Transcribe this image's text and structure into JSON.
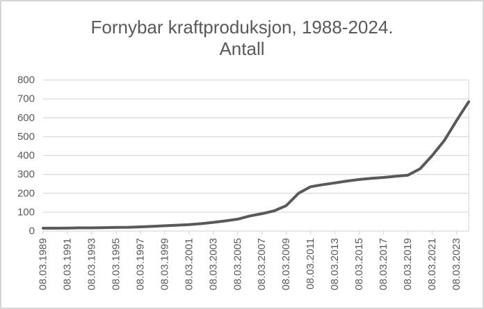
{
  "chart_data": {
    "type": "line",
    "title": "Fornybar kraftproduksjon, 1988-2024.",
    "subtitle": "Antall",
    "xlabel": "",
    "ylabel": "",
    "legend": "none",
    "grid": "horizontal",
    "ylim": [
      0,
      800
    ],
    "yticks": [
      0,
      100,
      200,
      300,
      400,
      500,
      600,
      700,
      800
    ],
    "x_tick_labels": [
      "08.03.1989",
      "08.03.1991",
      "08.03.1993",
      "08.03.1995",
      "08.03.1997",
      "08.03.1999",
      "08.03.2001",
      "08.03.2003",
      "08.03.2005",
      "08.03.2007",
      "08.03.2009",
      "08.03.2011",
      "08.03.2013",
      "08.03.2015",
      "08.03.2017",
      "08.03.2019",
      "08.03.2021",
      "08.03.2023"
    ],
    "x": [
      "08.03.1989",
      "08.03.1990",
      "08.03.1991",
      "08.03.1992",
      "08.03.1993",
      "08.03.1994",
      "08.03.1995",
      "08.03.1996",
      "08.03.1997",
      "08.03.1998",
      "08.03.1999",
      "08.03.2000",
      "08.03.2001",
      "08.03.2002",
      "08.03.2003",
      "08.03.2004",
      "08.03.2005",
      "08.03.2006",
      "08.03.2007",
      "08.03.2008",
      "08.03.2009",
      "08.03.2010",
      "08.03.2011",
      "08.03.2012",
      "08.03.2013",
      "08.03.2014",
      "08.03.2015",
      "08.03.2016",
      "08.03.2017",
      "08.03.2018",
      "08.03.2019",
      "08.03.2020",
      "08.03.2021",
      "08.03.2022",
      "08.03.2023",
      "08.03.2024"
    ],
    "series": [
      {
        "name": "Antall",
        "values": [
          15,
          15,
          16,
          17,
          17,
          18,
          19,
          20,
          22,
          25,
          28,
          31,
          34,
          39,
          46,
          54,
          63,
          80,
          92,
          107,
          135,
          200,
          235,
          246,
          255,
          265,
          273,
          279,
          284,
          290,
          296,
          330,
          400,
          480,
          585,
          685
        ]
      }
    ],
    "colors": {
      "line": "#595959",
      "grid": "#d9d9d9",
      "axis": "#d9d9d9",
      "text": "#595959",
      "background": "#ffffff",
      "frame_border": "#d6d6d6"
    }
  }
}
